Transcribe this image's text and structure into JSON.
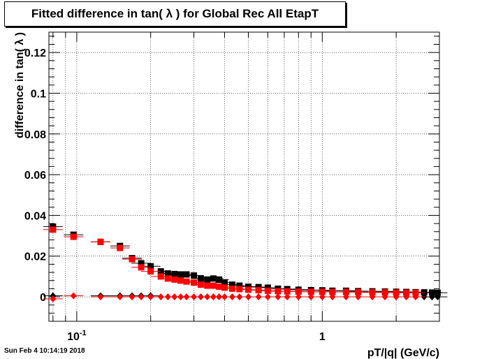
{
  "header": {
    "title": "Fitted difference in tan( λ ) for Global Rec All EtapT"
  },
  "footer": {
    "timestamp": "Sun Feb  4 10:14:19 2018"
  },
  "chart_data": {
    "type": "scatter",
    "title": "Fitted difference in tan( λ ) for Global Rec All EtapT",
    "xlabel": "pT/|q| (GeV/c)",
    "ylabel": "difference in tan( λ )",
    "xscale": "log",
    "xlim": [
      0.077,
      3.0
    ],
    "ylim": [
      -0.012,
      0.13
    ],
    "grid": true,
    "yticks": [
      {
        "v": 0,
        "label": "0"
      },
      {
        "v": 0.02,
        "label": "0.02"
      },
      {
        "v": 0.04,
        "label": "0.04"
      },
      {
        "v": 0.06,
        "label": "0.06"
      },
      {
        "v": 0.08,
        "label": "0.08"
      },
      {
        "v": 0.1,
        "label": "0.1"
      },
      {
        "v": 0.12,
        "label": "0.12"
      }
    ],
    "xticks_major": [
      {
        "v": 0.1,
        "label": "10",
        "sup": "-1"
      },
      {
        "v": 1,
        "label": "1",
        "sup": ""
      }
    ],
    "series": [
      {
        "color": "#000000",
        "marker": "square",
        "x": [
          0.08,
          0.097,
          0.125,
          0.15,
          0.168,
          0.183,
          0.2,
          0.22,
          0.235,
          0.25,
          0.265,
          0.28,
          0.3,
          0.32,
          0.34,
          0.36,
          0.38,
          0.4,
          0.43,
          0.46,
          0.5,
          0.55,
          0.6,
          0.66,
          0.72,
          0.8,
          0.9,
          1.0,
          1.1,
          1.25,
          1.4,
          1.6,
          1.8,
          2.0,
          2.2,
          2.4,
          2.6,
          2.8,
          2.95
        ],
        "y": [
          0.0345,
          0.0305,
          0.027,
          0.025,
          0.019,
          0.0165,
          0.015,
          0.0125,
          0.0115,
          0.0112,
          0.011,
          0.011,
          0.0105,
          0.009,
          0.0085,
          0.009,
          0.0085,
          0.007,
          0.006,
          0.0055,
          0.005,
          0.0048,
          0.0045,
          0.004,
          0.0038,
          0.0035,
          0.0033,
          0.0032,
          0.003,
          0.003,
          0.0028,
          0.0027,
          0.0026,
          0.0025,
          0.0024,
          0.0023,
          0.0022,
          0.0021,
          0.002
        ]
      },
      {
        "color": "#ff0000",
        "marker": "square",
        "x": [
          0.08,
          0.097,
          0.125,
          0.15,
          0.168,
          0.183,
          0.2,
          0.22,
          0.235,
          0.25,
          0.265,
          0.28,
          0.3,
          0.32,
          0.34,
          0.36,
          0.38,
          0.4,
          0.43,
          0.46,
          0.5,
          0.55,
          0.6,
          0.66,
          0.72,
          0.8,
          0.9,
          1.0,
          1.1,
          1.25,
          1.4,
          1.6,
          1.8,
          2.0,
          2.2,
          2.4
        ],
        "y": [
          0.033,
          0.0295,
          0.027,
          0.024,
          0.0185,
          0.0145,
          0.0125,
          0.01,
          0.009,
          0.0085,
          0.008,
          0.0075,
          0.007,
          0.006,
          0.0055,
          0.0055,
          0.005,
          0.0045,
          0.004,
          0.0038,
          0.0035,
          0.0033,
          0.003,
          0.0028,
          0.0027,
          0.0026,
          0.0025,
          0.0025,
          0.0024,
          0.0024,
          0.0023,
          0.0022,
          0.0022,
          0.0021,
          0.002,
          0.002
        ]
      },
      {
        "color": "#000000",
        "marker": "diamond",
        "x": [
          0.08,
          0.125,
          0.15,
          0.168,
          0.183,
          0.2,
          2.6,
          2.8,
          2.95
        ],
        "y": [
          0.0005,
          0.0005,
          0.0005,
          0.0005,
          0.0005,
          0.0005,
          0.0,
          0.0,
          0.0
        ]
      },
      {
        "color": "#ff0000",
        "marker": "diamond",
        "x": [
          0.08,
          0.097,
          0.125,
          0.15,
          0.168,
          0.183,
          0.2,
          0.22,
          0.235,
          0.25,
          0.265,
          0.28,
          0.3,
          0.32,
          0.34,
          0.36,
          0.38,
          0.4,
          0.43,
          0.46,
          0.5,
          0.55,
          0.6,
          0.66,
          0.72,
          0.8,
          0.9,
          1.0,
          1.1,
          1.25,
          1.4,
          1.6,
          1.8,
          2.0,
          2.2,
          2.4
        ],
        "y": [
          -0.001,
          0.0005,
          0.0,
          0.0,
          0.0,
          0.0,
          0.0,
          0.0,
          0.0,
          0.0,
          0.0,
          0.0,
          0.0,
          0.0,
          0.0,
          0.0,
          0.0,
          0.0,
          0.0,
          0.0,
          0.0,
          0.0,
          0.0,
          0.0,
          0.0,
          0.0,
          0.0,
          0.0,
          0.0,
          0.0,
          0.0,
          0.0,
          0.0,
          0.0,
          0.0,
          0.0
        ]
      }
    ]
  }
}
